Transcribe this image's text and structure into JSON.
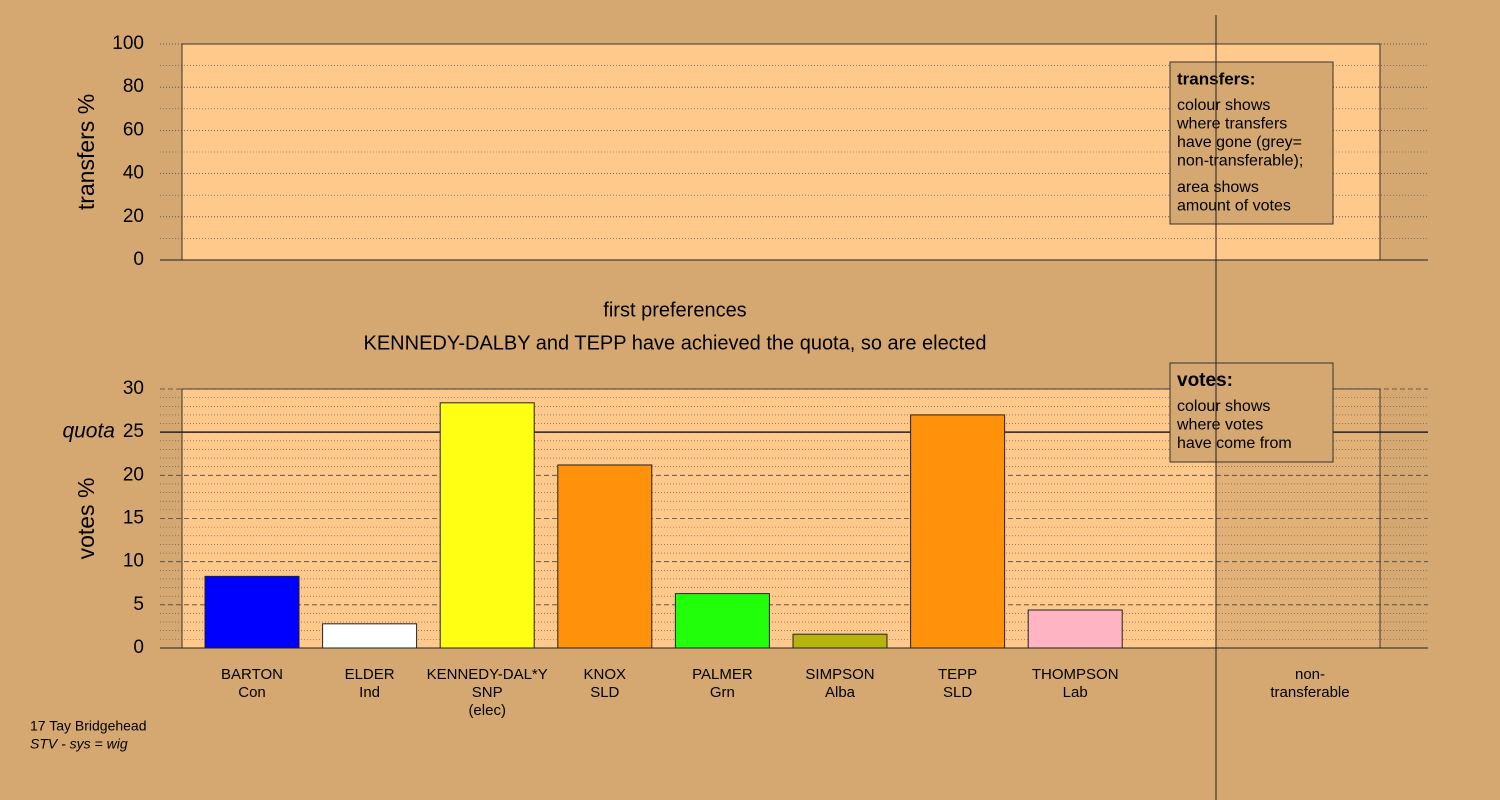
{
  "chart_data": [
    {
      "type": "bar",
      "ylabel": "transfers %",
      "ylim": [
        0,
        100
      ],
      "yticks": [
        0,
        20,
        40,
        60,
        80,
        100
      ],
      "legend": {
        "title": "transfers:",
        "lines": [
          "colour shows",
          "where transfers",
          "have gone (grey=",
          "non-transferable);"
        ],
        "lines2": [
          "area shows",
          "amount of votes"
        ]
      }
    },
    {
      "type": "bar",
      "title": "first preferences",
      "subtitle": "KENNEDY-DALBY and TEPP have achieved the quota, so are elected",
      "ylabel": "votes %",
      "ylim": [
        0,
        30
      ],
      "yticks": [
        0,
        5,
        10,
        15,
        20,
        25,
        30
      ],
      "quota": {
        "value": 25,
        "label": "quota"
      },
      "categories": [
        [
          "BARTON",
          "Con"
        ],
        [
          "ELDER",
          "Ind"
        ],
        [
          "KENNEDY-DAL*Y",
          "SNP",
          "(elec)"
        ],
        [
          "KNOX",
          "SLD"
        ],
        [
          "PALMER",
          "Grn"
        ],
        [
          "SIMPSON",
          "Alba"
        ],
        [
          "TEPP",
          "SLD"
        ],
        [
          "THOMPSON",
          "Lab"
        ],
        [
          "non-",
          "transferable"
        ]
      ],
      "values": [
        8.3,
        2.8,
        28.4,
        21.2,
        6.3,
        1.6,
        27.0,
        4.4,
        null
      ],
      "colors": [
        "#0000ff",
        "#ffffff",
        "#ffff14",
        "#ff920a",
        "#22ff0a",
        "#b4b40a",
        "#ff920a",
        "#ffb4c3",
        null
      ],
      "legend": {
        "title": "votes:",
        "lines": [
          "colour shows",
          "where votes",
          "have come from"
        ]
      }
    }
  ],
  "footer": {
    "line1": "17 Tay Bridgehead",
    "line2": "STV - sys = wig"
  }
}
